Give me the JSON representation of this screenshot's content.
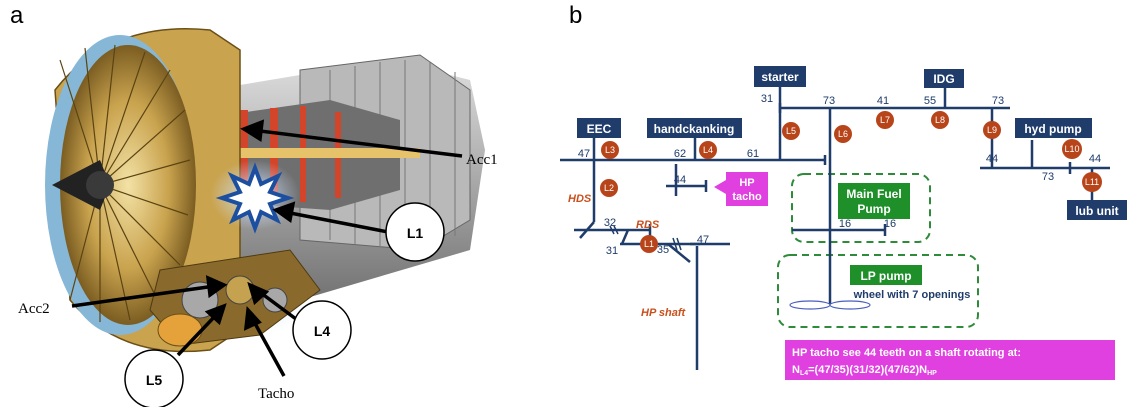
{
  "panel_a": {
    "letter": "a",
    "labels": {
      "acc1": "Acc1",
      "acc2": "Acc2",
      "tacho": "Tacho",
      "l1": "L1",
      "l4": "L4",
      "l5": "L5"
    }
  },
  "panel_b": {
    "letter": "b",
    "components": {
      "eec": "EEC",
      "handcranking": "handckanking",
      "starter": "starter",
      "idg": "IDG",
      "hyd_pump": "hyd pump",
      "lub_unit": "lub unit",
      "hp_tacho_line1": "HP",
      "hp_tacho_line2": "tacho",
      "main_fuel_line1": "Main Fuel",
      "main_fuel_line2": "Pump",
      "lp_pump": "LP pump",
      "wheel_openings": "wheel with 7 openings"
    },
    "teeth": {
      "n47_eec": "47",
      "n62": "62",
      "n61": "61",
      "n31_starter": "31",
      "n73_a": "73",
      "n41": "41",
      "n55": "55",
      "n73_b": "73",
      "n44_hyd": "44",
      "n73_c": "73",
      "n44_lub": "44",
      "n44_hp": "44",
      "n16_a": "16",
      "n16_b": "16",
      "n32": "32",
      "n31_low": "31",
      "n35": "35",
      "n47_low": "47"
    },
    "locations": {
      "l1": "L1",
      "l2": "L2",
      "l3": "L3",
      "l4": "L4",
      "l5": "L5",
      "l6": "L6",
      "l7": "L7",
      "l8": "L8",
      "l9": "L9",
      "l10": "L10",
      "l11": "L11"
    },
    "gearbox_labels": {
      "hds": "HDS",
      "rds": "RDS",
      "hp_shaft": "HP shaft"
    },
    "note": {
      "line1": "HP tacho see 44 teeth on a shaft rotating at:",
      "line2_prefix": "N",
      "line2_sub": "L4",
      "line2_mid": "=(47/35)(31/32)(47/62)N",
      "line2_sub2": "HP"
    },
    "colors": {
      "navy": "#1f3c6b",
      "location_badge": "#b8441a",
      "green_box": "#1f8f2a",
      "magenta": "#e040e0",
      "dash_green": "#2e8b3a",
      "label_orange": "#c8501e"
    }
  }
}
